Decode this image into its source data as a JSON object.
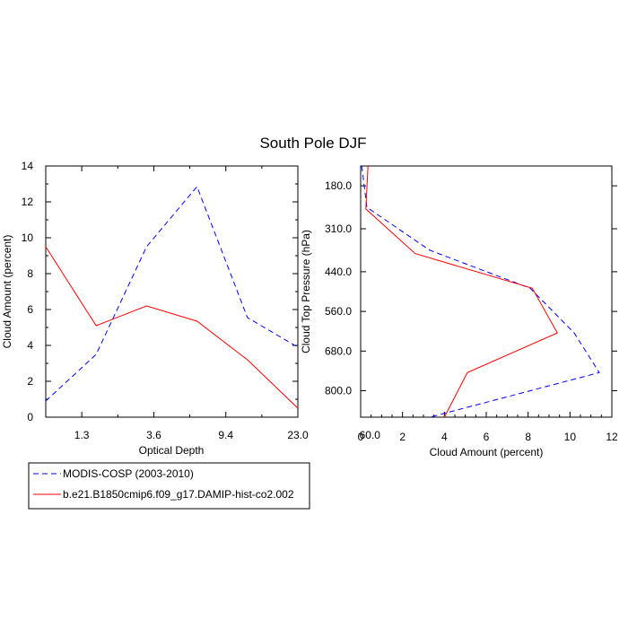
{
  "figure": {
    "title": "South Pole DJF"
  },
  "legend": {
    "placement": "bottom-left",
    "entries": [
      {
        "label": "MODIS-COSP (2003-2010)",
        "color": "#0000ff",
        "dash": "dashed"
      },
      {
        "label": "b.e21.B1850cmip6.f09_g17.DAMIP-hist-co2.002",
        "color": "#ff0000",
        "dash": "solid"
      }
    ]
  },
  "chart_data": [
    {
      "type": "line",
      "title": "",
      "xlabel": "Optical Depth",
      "ylabel": "Cloud Amount (percent)",
      "x_tick_labels": [
        "1.3",
        "3.6",
        "9.4",
        "23.0",
        "60.0"
      ],
      "x_bins": 7,
      "ylim": [
        0,
        14
      ],
      "y_ticks": [
        0,
        2,
        4,
        6,
        8,
        10,
        12,
        14
      ],
      "grid": false,
      "series": [
        {
          "name": "MODIS-COSP (2003-2010)",
          "color": "#0000ff",
          "dash": "dashed",
          "values": [
            0.9,
            3.5,
            9.5,
            12.85,
            5.55,
            3.9
          ]
        },
        {
          "name": "b.e21.B1850cmip6.f09_g17.DAMIP-hist-co2.002",
          "color": "#ff0000",
          "dash": "solid",
          "values": [
            9.5,
            5.1,
            6.2,
            5.35,
            3.2,
            0.5
          ]
        }
      ]
    },
    {
      "type": "line",
      "title": "",
      "xlabel": "Cloud Amount (percent)",
      "ylabel": "Cloud Top Pressure (hPa)",
      "xlim": [
        0,
        12
      ],
      "x_ticks": [
        0,
        2,
        4,
        6,
        8,
        10,
        12
      ],
      "ylim": [
        880,
        120
      ],
      "y_ticks": [
        180.0,
        310.0,
        440.0,
        560.0,
        680.0,
        800.0
      ],
      "y_tick_labels": [
        "180.0",
        "310.0",
        "440.0",
        "560.0",
        "680.0",
        "800.0"
      ],
      "y_reversed": true,
      "grid": false,
      "series": [
        {
          "name": "MODIS-COSP (2003-2010)",
          "color": "#0000ff",
          "dash": "dashed",
          "points": [
            [
              0.05,
              120
            ],
            [
              0.3,
              245
            ],
            [
              3.3,
              375
            ],
            [
              8.1,
              490
            ],
            [
              10.2,
              625
            ],
            [
              11.4,
              745
            ],
            [
              3.3,
              880
            ]
          ]
        },
        {
          "name": "b.e21.B1850cmip6.f09_g17.DAMIP-hist-co2.002",
          "color": "#ff0000",
          "dash": "solid",
          "points": [
            [
              0.35,
              120
            ],
            [
              0.25,
              250
            ],
            [
              2.6,
              385
            ],
            [
              8.2,
              490
            ],
            [
              9.4,
              625
            ],
            [
              5.1,
              745
            ],
            [
              4.0,
              880
            ]
          ]
        }
      ]
    }
  ]
}
